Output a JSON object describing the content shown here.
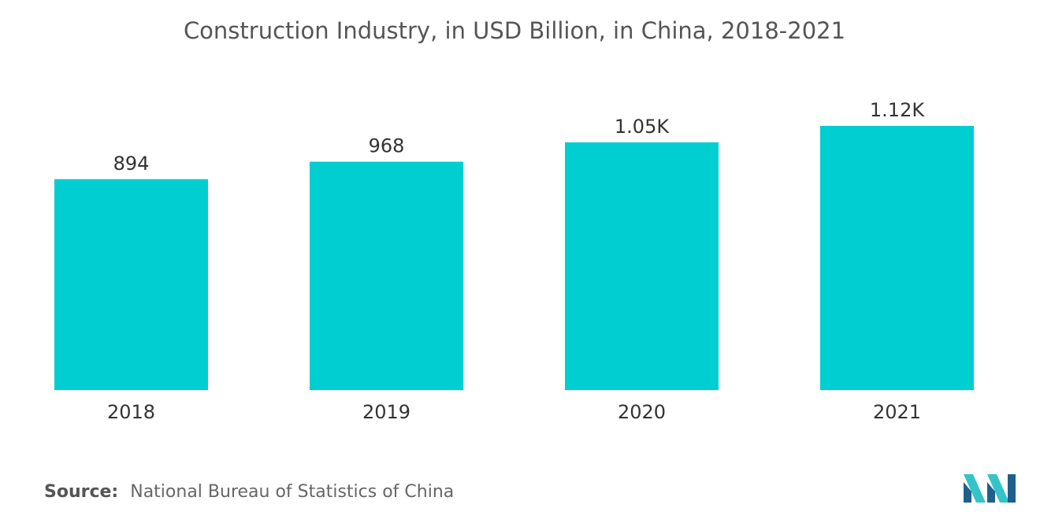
{
  "chart_data": {
    "type": "bar",
    "title": "Construction Industry, in USD Billion, in China, 2018-2021",
    "categories": [
      "2018",
      "2019",
      "2020",
      "2021"
    ],
    "values": [
      894,
      968,
      1050,
      1120
    ],
    "data_labels": [
      "894",
      "968",
      "1.05K",
      "1.12K"
    ],
    "xlabel": "",
    "ylabel": "",
    "ylim": [
      0,
      1200
    ],
    "grid": false,
    "legend": "none",
    "bar_color": "#00CED1"
  },
  "source": {
    "label": "Source:",
    "text": "National Bureau of Statistics of China"
  },
  "colors": {
    "bar": "#00CED1",
    "logo_dark": "#1f5f8b",
    "logo_light": "#34c3c8"
  },
  "logo": {
    "icon": "mordor-intelligence-logo-icon"
  }
}
